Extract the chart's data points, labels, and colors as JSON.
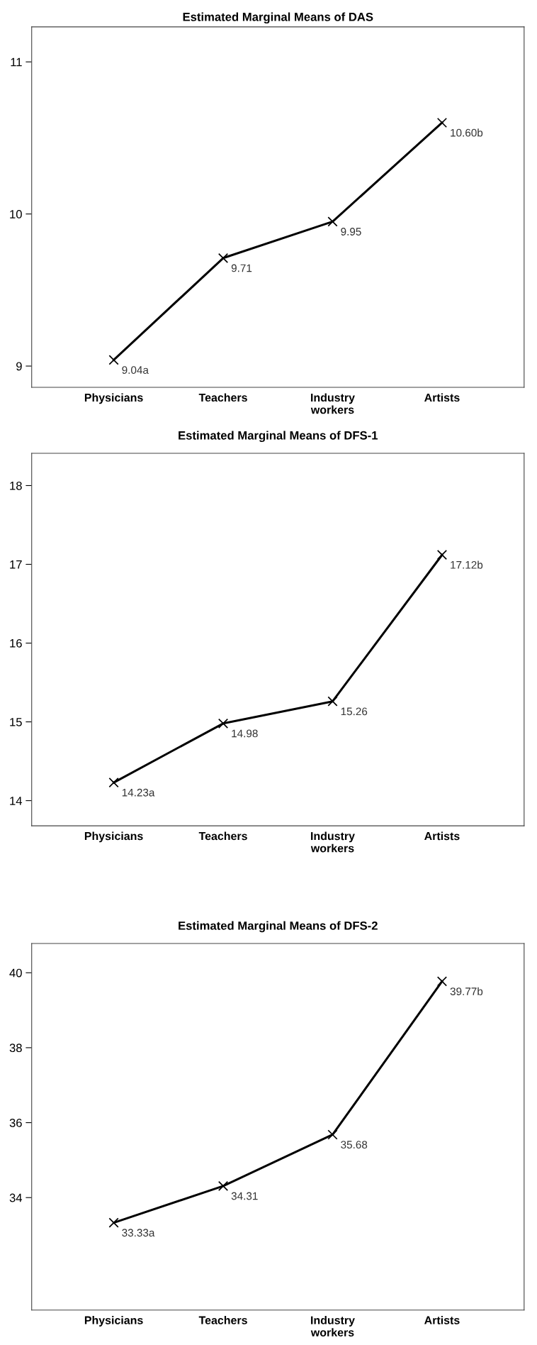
{
  "chart_data": [
    {
      "type": "line",
      "title": "Estimated Marginal Means of DAS",
      "categories": [
        "Physicians",
        "Teachers",
        "Industry\nworkers",
        "Artists"
      ],
      "series": [
        {
          "color": "#000000",
          "values": [
            9.04,
            9.71,
            9.95,
            10.6
          ],
          "value_labels": [
            "9.04a",
            "9.71",
            "9.95",
            "10.60b"
          ]
        }
      ],
      "ylim": [
        8.86,
        11.23
      ],
      "yticks": [
        9,
        10,
        11
      ],
      "marker": "cross",
      "line_style": "solid",
      "grid": false,
      "legend": false
    },
    {
      "type": "line",
      "title": "Estimated Marginal Means of DFS-1",
      "categories": [
        "Physicians",
        "Teachers",
        "Industry\nworkers",
        "Artists"
      ],
      "series": [
        {
          "color": "#000000",
          "values": [
            14.23,
            14.98,
            15.26,
            17.12
          ],
          "value_labels": [
            "14.23a",
            "14.98",
            "15.26",
            "17.12b"
          ]
        }
      ],
      "ylim": [
        13.68,
        18.41
      ],
      "yticks": [
        14,
        15,
        16,
        17,
        18
      ],
      "marker": "cross",
      "line_style": "solid",
      "grid": false,
      "legend": false
    },
    {
      "type": "line",
      "title": "Estimated Marginal Means of DFS-2",
      "categories": [
        "Physicians",
        "Teachers",
        "Industry\nworkers",
        "Artists"
      ],
      "series": [
        {
          "color": "#000000",
          "values": [
            33.33,
            34.31,
            35.68,
            39.77
          ],
          "value_labels": [
            "33.33a",
            "34.31",
            "35.68",
            "39.77b"
          ]
        }
      ],
      "ylim": [
        31.0,
        40.78
      ],
      "yticks": [
        34,
        36,
        38,
        40
      ],
      "marker": "cross",
      "line_style": "solid",
      "grid": false,
      "legend": false
    }
  ]
}
